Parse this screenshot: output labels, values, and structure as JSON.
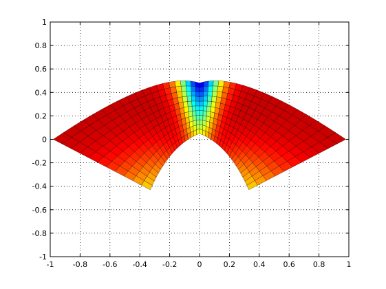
{
  "chart_data": {
    "type": "heatmap",
    "title": "",
    "xlabel": "",
    "ylabel": "",
    "xlim": [
      -1,
      1
    ],
    "ylim": [
      -1,
      1
    ],
    "xticks": [
      "-1",
      "-0.8",
      "-0.6",
      "-0.4",
      "-0.2",
      "0",
      "0.2",
      "0.4",
      "0.6",
      "0.8",
      "1"
    ],
    "yticks": [
      "-1",
      "-0.8",
      "-0.6",
      "-0.4",
      "-0.2",
      "0",
      "0.2",
      "0.4",
      "0.6",
      "0.8",
      "1"
    ],
    "grid": true,
    "colormap": "jet",
    "surface": {
      "description": "Two mirrored curved annular-sector surface patches meeting near the origin",
      "outer_radius": 1.0,
      "inner_radius": 0.45,
      "angle_range_deg": [
        0,
        90
      ],
      "apex": [
        0.0,
        0.05
      ],
      "outer_arc_peak_y": 0.48,
      "lobes": [
        "left",
        "right"
      ],
      "far_tips": [
        [
          -0.98,
          0.0
        ],
        [
          0.98,
          0.0
        ]
      ],
      "near_tips": [
        [
          -0.33,
          -0.43
        ],
        [
          0.33,
          -0.43
        ]
      ]
    }
  }
}
